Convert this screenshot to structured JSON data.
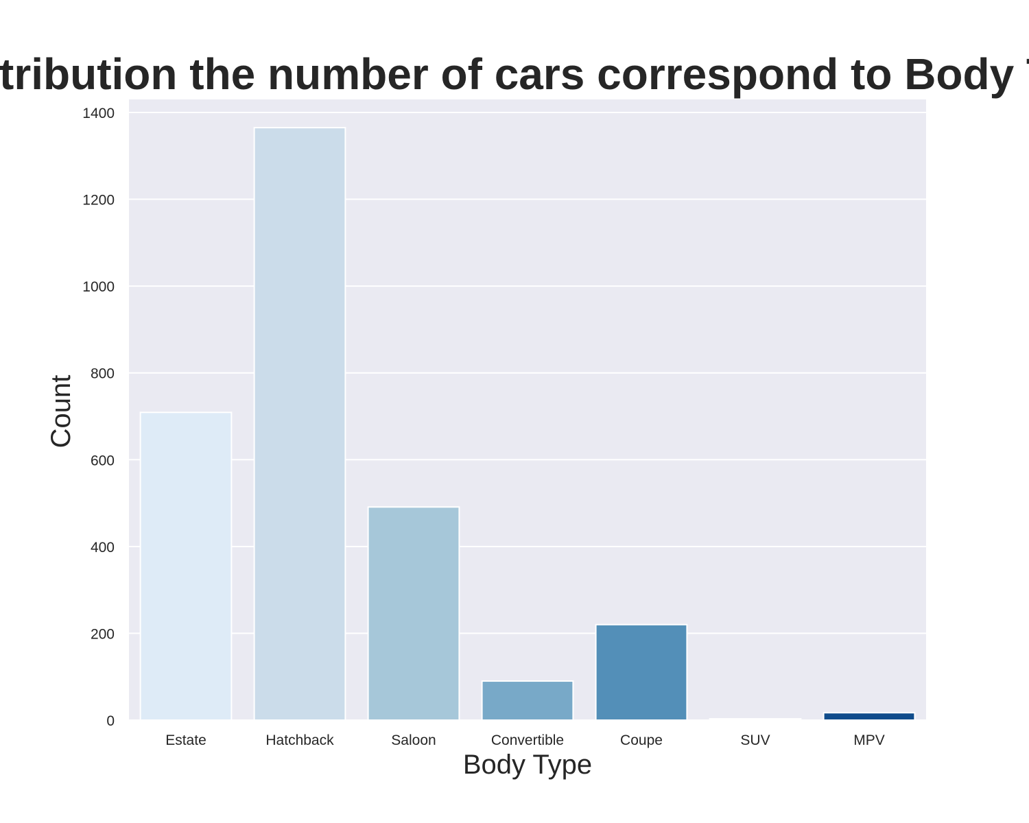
{
  "chart_data": {
    "type": "bar",
    "title": "Distribution the number of cars correspond to Body Type",
    "xlabel": "Body Type",
    "ylabel": "Count",
    "categories": [
      "Estate",
      "Hatchback",
      "Saloon",
      "Convertible",
      "Coupe",
      "SUV",
      "MPV"
    ],
    "values": [
      709,
      1365,
      491,
      90,
      220,
      3,
      17
    ],
    "ylim": [
      0,
      1430
    ],
    "yticks": [
      0,
      200,
      400,
      600,
      800,
      1000,
      1200,
      1400
    ],
    "grid": true,
    "legend": "none",
    "colors": [
      "#deebf7",
      "#cbdcea",
      "#a6c7d9",
      "#78a9c8",
      "#538fb8",
      "#2f6aa3",
      "#104c8b"
    ],
    "background": "#eaeaf2",
    "gridline_color": "#ffffff",
    "text_color": "#262626"
  }
}
